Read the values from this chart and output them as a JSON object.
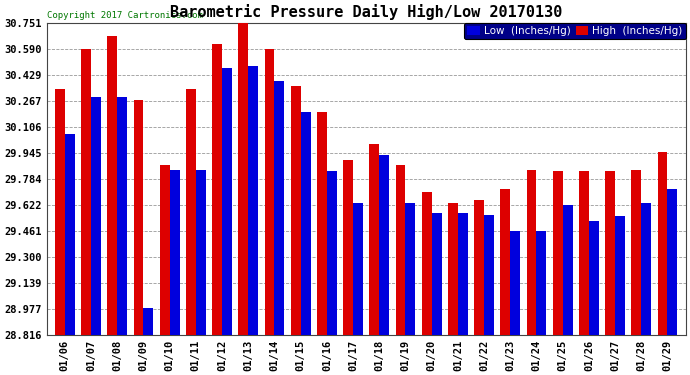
{
  "title": "Barometric Pressure Daily High/Low 20170130",
  "copyright": "Copyright 2017 Cartronics.com",
  "legend_low": "Low  (Inches/Hg)",
  "legend_high": "High  (Inches/Hg)",
  "dates": [
    "01/06",
    "01/07",
    "01/08",
    "01/09",
    "01/10",
    "01/11",
    "01/12",
    "01/13",
    "01/14",
    "01/15",
    "01/16",
    "01/17",
    "01/18",
    "01/19",
    "01/20",
    "01/21",
    "01/22",
    "01/23",
    "01/24",
    "01/25",
    "01/26",
    "01/27",
    "01/28",
    "01/29"
  ],
  "low": [
    30.06,
    30.29,
    30.29,
    28.98,
    29.84,
    29.84,
    30.47,
    30.48,
    30.39,
    30.2,
    29.83,
    29.63,
    29.93,
    29.63,
    29.57,
    29.57,
    29.56,
    29.46,
    29.46,
    29.62,
    29.52,
    29.55,
    29.63,
    29.72
  ],
  "high": [
    30.34,
    30.59,
    30.67,
    30.27,
    29.87,
    30.34,
    30.62,
    30.75,
    30.59,
    30.36,
    30.2,
    29.9,
    30.0,
    29.87,
    29.7,
    29.63,
    29.65,
    29.72,
    29.84,
    29.83,
    29.83,
    29.83,
    29.84,
    29.95
  ],
  "ylim_min": 28.816,
  "ylim_max": 30.751,
  "yticks": [
    28.816,
    28.977,
    29.139,
    29.3,
    29.461,
    29.622,
    29.784,
    29.945,
    30.106,
    30.267,
    30.429,
    30.59,
    30.751
  ],
  "bar_width": 0.38,
  "low_color": "#0000dd",
  "high_color": "#dd0000",
  "bg_color": "#ffffff",
  "grid_color": "#999999",
  "title_fontsize": 11,
  "tick_fontsize": 7.5,
  "copyright_fontsize": 6.5,
  "legend_fontsize": 7.5
}
